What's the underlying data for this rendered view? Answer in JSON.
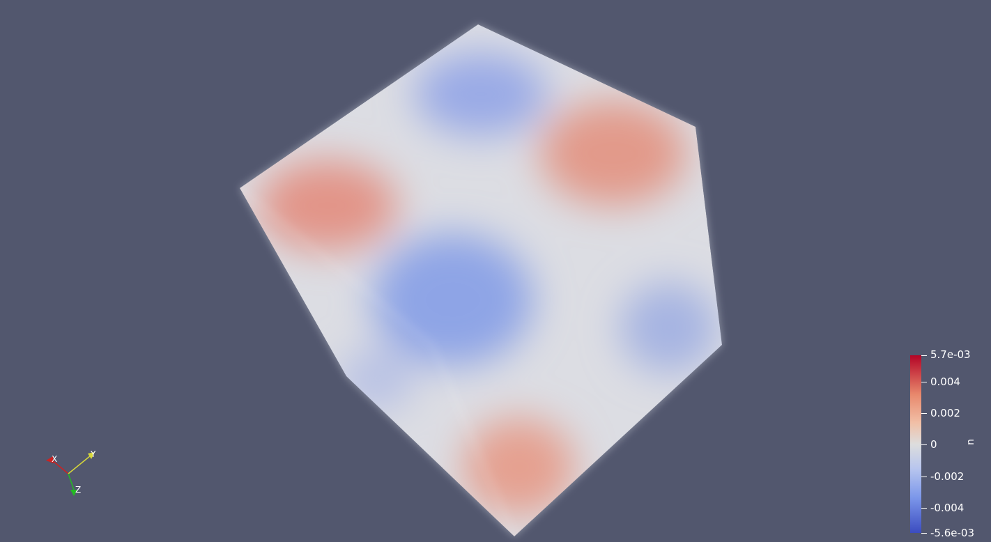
{
  "render_view": {
    "background_color": "#52576e",
    "colormap": {
      "low_color": "#3b4cc0",
      "mid_color": "#dddddd",
      "high_color": "#b40426"
    }
  },
  "orientation_axes": {
    "x_label": "X",
    "y_label": "Y",
    "z_label": "Z",
    "x_color": "#cc2222",
    "y_color": "#d7d73a",
    "z_color": "#22bb22"
  },
  "scalar_bar": {
    "title": "u",
    "max_label": "5.7e-03",
    "min_label": "-5.6e-03",
    "tick_labels": [
      "0.004",
      "0.002",
      "0",
      "-0.002",
      "-0.004"
    ],
    "range": [
      -0.0056,
      0.0057
    ],
    "ticks": [
      0.004,
      0.002,
      0,
      -0.002,
      -0.004
    ]
  }
}
